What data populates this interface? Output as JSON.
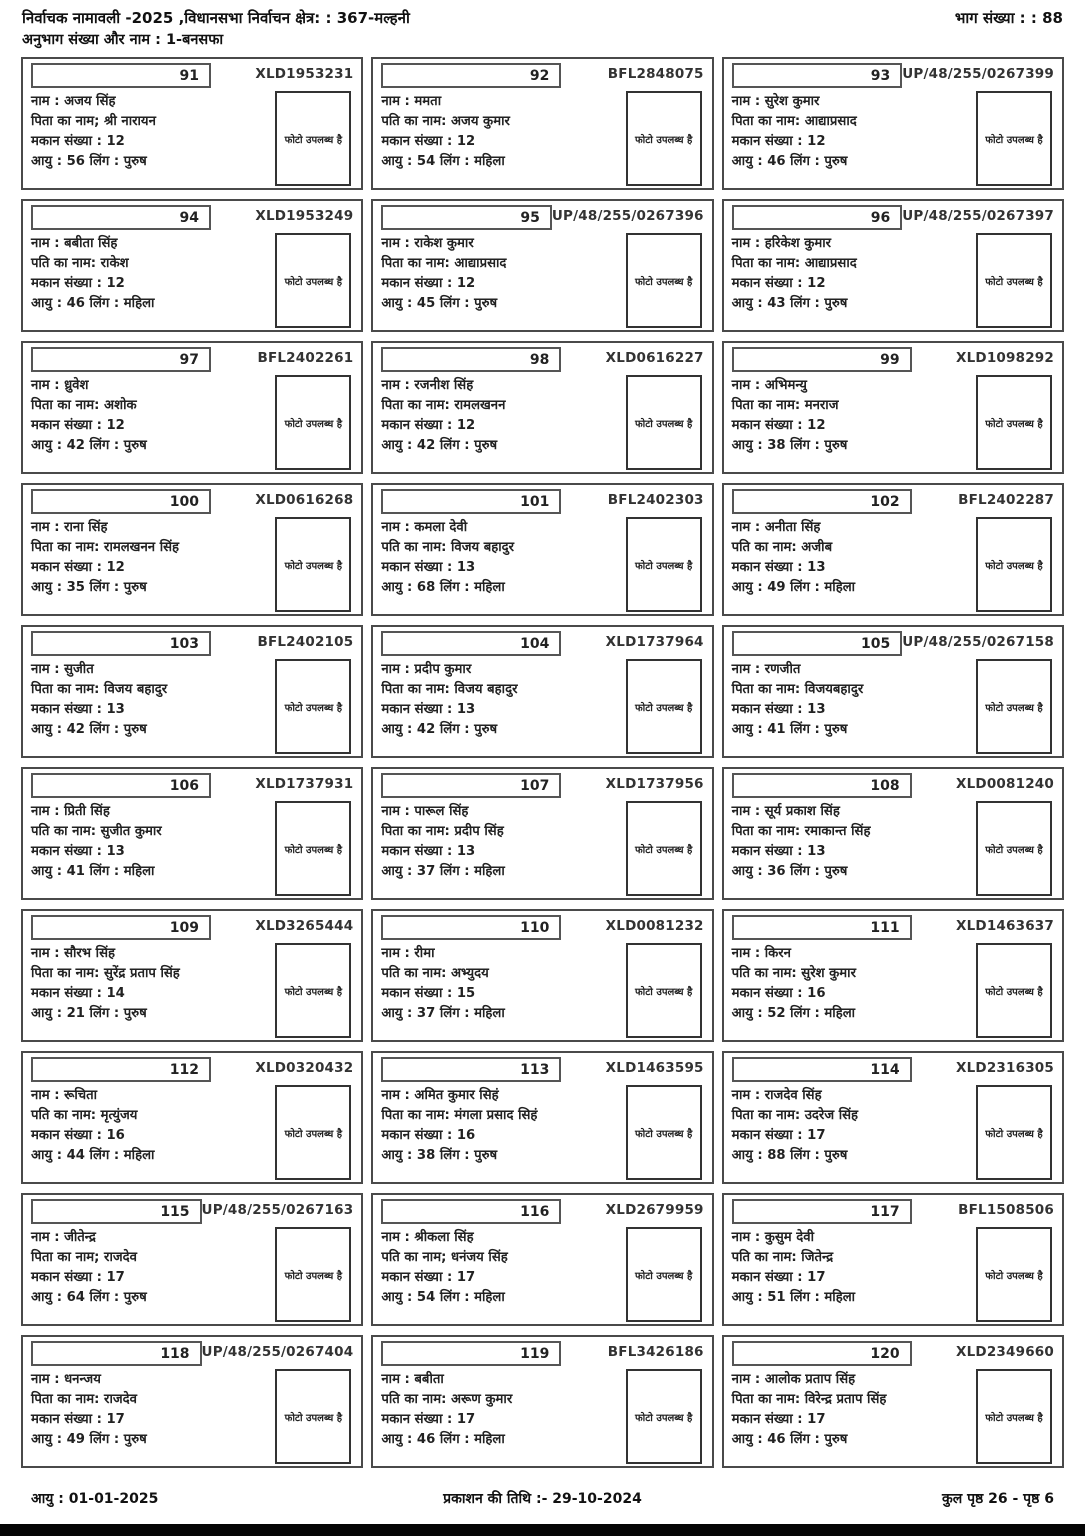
{
  "header": {
    "line1": "निर्वाचक नामावली -2025 ,विधानसभा निर्वाचन क्षेत्र: : 367-मल्हनी",
    "part_number": "भाग संख्या : : 88",
    "line2": "अनुभाग संख्या और नाम :  1-बनसफा"
  },
  "labels": {
    "photo_available": "फोटो उपलब्ध है"
  },
  "footer": {
    "left": "आयु : 01-01-2025",
    "center": "प्रकाशन की तिथि :- 29-10-2024",
    "right": "कुल पृष्ठ 26 - पृष्ठ 6"
  },
  "voters": [
    {
      "serial": "91",
      "voter_id": "XLD1953231",
      "name_line": "नाम : अजय सिंह",
      "relation_line": "पिता का नाम; श्री नारायन",
      "house_line": "मकान संख्या : 12",
      "age_line": "आयु : 56 लिंग : पुरुष"
    },
    {
      "serial": "92",
      "voter_id": "BFL2848075",
      "name_line": "नाम : ममता",
      "relation_line": "पति का नाम: अजय कुमार",
      "house_line": "मकान संख्या : 12",
      "age_line": "आयु : 54 लिंग : महिला"
    },
    {
      "serial": "93",
      "voter_id": "UP/48/255/0267399",
      "name_line": "नाम : सुरेश कुमार",
      "relation_line": "पिता का नाम: आद्याप्रसाद",
      "house_line": "मकान संख्या : 12",
      "age_line": "आयु : 46 लिंग : पुरुष"
    },
    {
      "serial": "94",
      "voter_id": "XLD1953249",
      "name_line": "नाम : बबीता सिंह",
      "relation_line": "पति का नाम: राकेश",
      "house_line": "मकान संख्या : 12",
      "age_line": "आयु : 46 लिंग : महिला"
    },
    {
      "serial": "95",
      "voter_id": "UP/48/255/0267396",
      "name_line": "नाम : राकेश कुमार",
      "relation_line": "पिता का नाम: आद्याप्रसाद",
      "house_line": "मकान संख्या : 12",
      "age_line": "आयु : 45 लिंग : पुरुष"
    },
    {
      "serial": "96",
      "voter_id": "UP/48/255/0267397",
      "name_line": "नाम : हरिकेश कुमार",
      "relation_line": "पिता का नाम: आद्याप्रसाद",
      "house_line": "मकान संख्या : 12",
      "age_line": "आयु : 43 लिंग : पुरुष"
    },
    {
      "serial": "97",
      "voter_id": "BFL2402261",
      "name_line": "नाम : ध्रुवेश",
      "relation_line": "पिता का नाम: अशोक",
      "house_line": "मकान संख्या : 12",
      "age_line": "आयु : 42 लिंग : पुरुष"
    },
    {
      "serial": "98",
      "voter_id": "XLD0616227",
      "name_line": "नाम : रजनीश सिंह",
      "relation_line": "पिता का नाम: रामलखनन",
      "house_line": "मकान संख्या : 12",
      "age_line": "आयु : 42 लिंग : पुरुष"
    },
    {
      "serial": "99",
      "voter_id": "XLD1098292",
      "name_line": "नाम : अभिमन्यु",
      "relation_line": "पिता का नाम: मनराज",
      "house_line": "मकान संख्या : 12",
      "age_line": "आयु : 38 लिंग : पुरुष"
    },
    {
      "serial": "100",
      "voter_id": "XLD0616268",
      "name_line": "नाम : राना सिंह",
      "relation_line": "पिता का नाम: रामलखनन सिंह",
      "house_line": "मकान संख्या : 12",
      "age_line": "आयु : 35 लिंग : पुरुष"
    },
    {
      "serial": "101",
      "voter_id": "BFL2402303",
      "name_line": "नाम : कमला देवी",
      "relation_line": "पति का नाम: विजय बहादुर",
      "house_line": "मकान संख्या : 13",
      "age_line": "आयु : 68 लिंग : महिला"
    },
    {
      "serial": "102",
      "voter_id": "BFL2402287",
      "name_line": "नाम : अनीता सिंह",
      "relation_line": "पति का नाम: अजीब",
      "house_line": "मकान संख्या : 13",
      "age_line": "आयु : 49 लिंग : महिला"
    },
    {
      "serial": "103",
      "voter_id": "BFL2402105",
      "name_line": "नाम : सुजीत",
      "relation_line": "पिता का नाम: विजय बहादुर",
      "house_line": "मकान संख्या : 13",
      "age_line": "आयु : 42 लिंग : पुरुष"
    },
    {
      "serial": "104",
      "voter_id": "XLD1737964",
      "name_line": "नाम : प्रदीप कुमार",
      "relation_line": "पिता का नाम: विजय बहादुर",
      "house_line": "मकान संख्या : 13",
      "age_line": "आयु : 42 लिंग : पुरुष"
    },
    {
      "serial": "105",
      "voter_id": "UP/48/255/0267158",
      "name_line": "नाम : रणजीत",
      "relation_line": "पिता का नाम: विजयबहादुर",
      "house_line": "मकान संख्या : 13",
      "age_line": "आयु : 41 लिंग : पुरुष"
    },
    {
      "serial": "106",
      "voter_id": "XLD1737931",
      "name_line": "नाम : प्रिती सिंह",
      "relation_line": "पति का नाम: सुजीत कुमार",
      "house_line": "मकान संख्या : 13",
      "age_line": "आयु : 41 लिंग : महिला"
    },
    {
      "serial": "107",
      "voter_id": "XLD1737956",
      "name_line": "नाम : पारूल सिंह",
      "relation_line": "पिता का नाम: प्रदीप सिंह",
      "house_line": "मकान संख्या : 13",
      "age_line": "आयु : 37 लिंग : महिला"
    },
    {
      "serial": "108",
      "voter_id": "XLD0081240",
      "name_line": "नाम : सूर्य प्रकाश सिंह",
      "relation_line": "पिता का नाम: रमाकान्त सिंह",
      "house_line": "मकान संख्या : 13",
      "age_line": "आयु : 36 लिंग : पुरुष"
    },
    {
      "serial": "109",
      "voter_id": "XLD3265444",
      "name_line": "नाम : सौरभ सिंह",
      "relation_line": "पिता का नाम: सुरेंद्र प्रताप सिंह",
      "house_line": "मकान संख्या : 14",
      "age_line": "आयु : 21 लिंग : पुरुष"
    },
    {
      "serial": "110",
      "voter_id": "XLD0081232",
      "name_line": "नाम : रीमा",
      "relation_line": "पति का नाम: अभ्युदय",
      "house_line": "मकान संख्या : 15",
      "age_line": "आयु : 37 लिंग : महिला"
    },
    {
      "serial": "111",
      "voter_id": "XLD1463637",
      "name_line": "नाम : किरन",
      "relation_line": "पति का नाम: सुरेश कुमार",
      "house_line": "मकान संख्या : 16",
      "age_line": "आयु : 52 लिंग : महिला"
    },
    {
      "serial": "112",
      "voter_id": "XLD0320432",
      "name_line": "नाम : रूचिता",
      "relation_line": "पति का नाम: मृत्युंजय",
      "house_line": "मकान संख्या : 16",
      "age_line": "आयु : 44 लिंग : महिला"
    },
    {
      "serial": "113",
      "voter_id": "XLD1463595",
      "name_line": "नाम : अमित कुमार सिहं",
      "relation_line": "पिता का नाम: मंगला प्रसाद सिहं",
      "house_line": "मकान संख्या : 16",
      "age_line": "आयु : 38 लिंग : पुरुष"
    },
    {
      "serial": "114",
      "voter_id": "XLD2316305",
      "name_line": "नाम : राजदेव सिंह",
      "relation_line": "पिता का नाम: उदरेज सिंह",
      "house_line": "मकान संख्या : 17",
      "age_line": "आयु : 88 लिंग : पुरुष"
    },
    {
      "serial": "115",
      "voter_id": "UP/48/255/0267163",
      "name_line": "नाम : जीतेन्द्र",
      "relation_line": "पिता का नाम; राजदेव",
      "house_line": "मकान संख्या : 17",
      "age_line": "आयु : 64 लिंग : पुरुष"
    },
    {
      "serial": "116",
      "voter_id": "XLD2679959",
      "name_line": "नाम : श्रीकला सिंह",
      "relation_line": "पति का नाम; धनंजय सिंह",
      "house_line": "मकान संख्या : 17",
      "age_line": "आयु : 54 लिंग : महिला"
    },
    {
      "serial": "117",
      "voter_id": "BFL1508506",
      "name_line": "नाम : कुसुम देवी",
      "relation_line": "पति का नाम: जितेन्द्र",
      "house_line": "मकान संख्या : 17",
      "age_line": "आयु : 51 लिंग : महिला"
    },
    {
      "serial": "118",
      "voter_id": "UP/48/255/0267404",
      "name_line": "नाम : धनन्जय",
      "relation_line": "पिता का नाम: राजदेव",
      "house_line": "मकान संख्या : 17",
      "age_line": "आयु : 49 लिंग : पुरुष"
    },
    {
      "serial": "119",
      "voter_id": "BFL3426186",
      "name_line": "नाम : बबीता",
      "relation_line": "पति का नाम: अरूण कुमार",
      "house_line": "मकान संख्या : 17",
      "age_line": "आयु : 46 लिंग : महिला"
    },
    {
      "serial": "120",
      "voter_id": "XLD2349660",
      "name_line": "नाम : आलोक प्रताप सिंह",
      "relation_line": "पिता का नाम: विरेन्द्र प्रताप सिंह",
      "house_line": "मकान संख्या : 17",
      "age_line": "आयु : 46 लिंग : पुरुष"
    }
  ]
}
